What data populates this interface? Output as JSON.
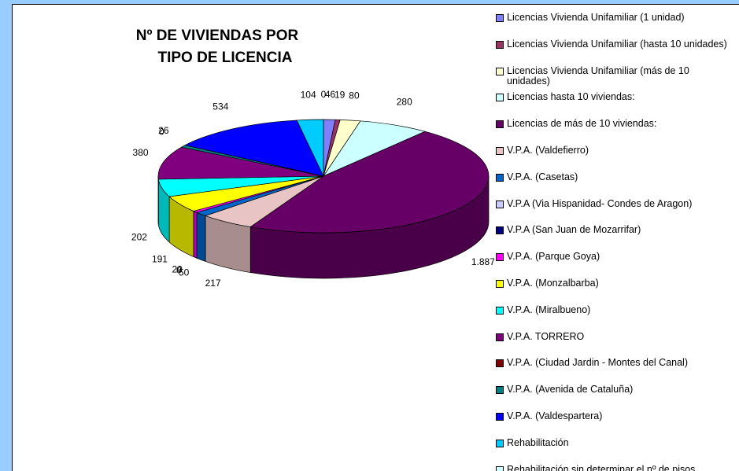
{
  "chart_data": {
    "type": "pie",
    "title": [
      "Nº DE VIVIENDAS POR",
      "TIPO DE LICENCIA"
    ],
    "categories": [
      "Licencias Vivienda Unifamiliar (1 unidad)",
      "Licencias Vivienda Unifamiliar (hasta 10 unidades)",
      "Licencias Vivienda Unifamiliar  (más de 10 unidades)",
      "Licencias hasta 10 viviendas:",
      "Licencias de más de 10 viviendas:",
      "V.P.A. (Valdefierro)",
      "V.P.A. (Casetas)",
      "V.P.A (Via Hispanidad- Condes de Aragon)",
      "V.P.A (San Juan de Mozarrifar)",
      "V.P.A. (Parque Goya)",
      "V.P.A. (Monzalbarba)",
      "V.P.A. (Miralbueno)",
      "V.P.A. TORRERO",
      "V.P.A. (Ciudad Jardin - Montes del Canal)",
      "V.P.A. (Avenida de Cataluña)",
      "V.P.A. (Valdespartera)",
      "Rehabilitación",
      "Rehabilitación sin determinar el nº de pisos"
    ],
    "values": [
      46,
      19,
      80,
      280,
      1887,
      217,
      50,
      0,
      0,
      20,
      191,
      202,
      380,
      0,
      26,
      534,
      104,
      0
    ],
    "value_labels": [
      "46",
      "19",
      "80",
      "280",
      "1.887",
      "217",
      "50",
      "0",
      "0",
      "20",
      "191",
      "202",
      "380",
      "0",
      "26",
      "534",
      "104",
      "0"
    ],
    "colors": [
      "#8080ff",
      "#993366",
      "#ffffcc",
      "#ccffff",
      "#660066",
      "#e8c4c4",
      "#0066cc",
      "#ccccff",
      "#000080",
      "#ff00ff",
      "#ffff00",
      "#00ffff",
      "#800080",
      "#800000",
      "#008080",
      "#0000ff",
      "#00ccff",
      "#ccffff"
    ],
    "legend": "right"
  }
}
